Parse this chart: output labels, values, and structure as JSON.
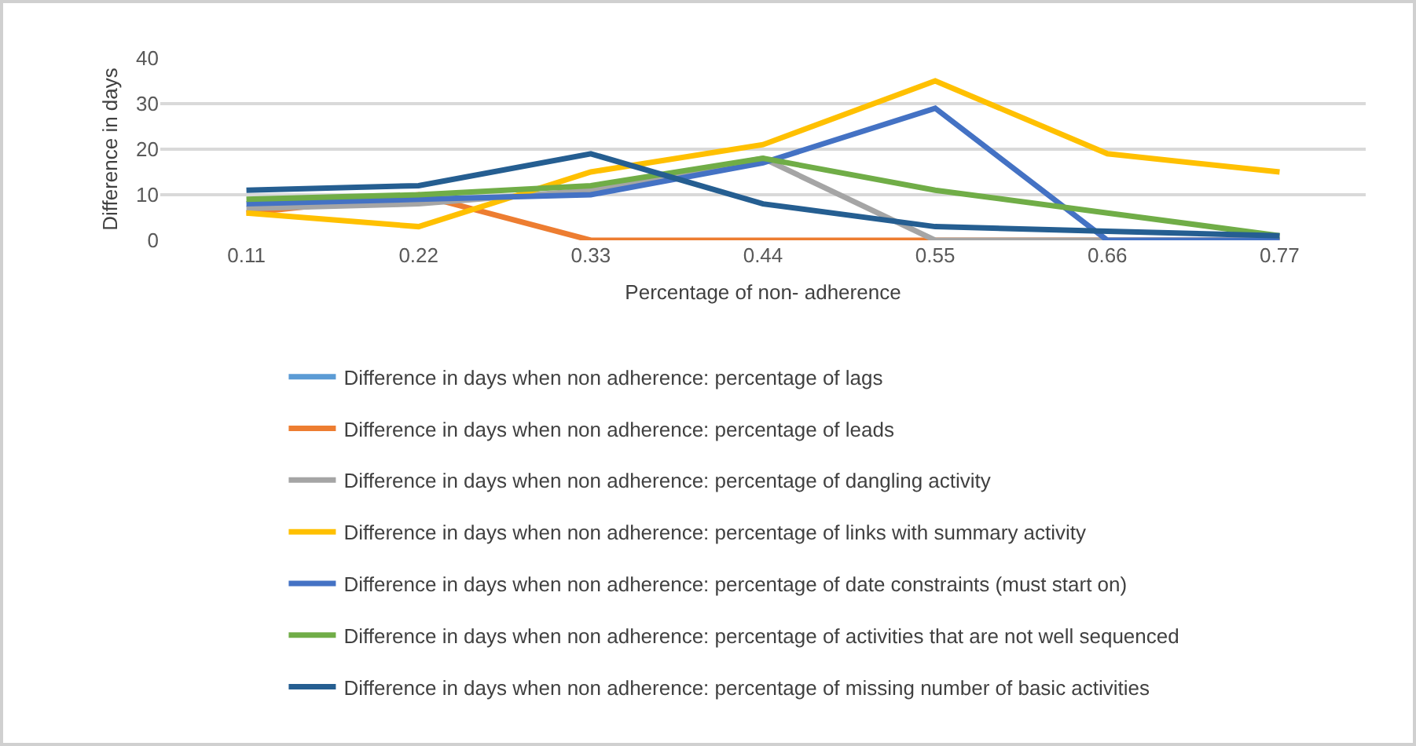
{
  "chart_data": {
    "type": "line",
    "xlabel": "Percentage of non- adherence",
    "ylabel": "Difference in days",
    "categories": [
      "0.11",
      "0.22",
      "0.33",
      "0.44",
      "0.55",
      "0.66",
      "0.77"
    ],
    "series": [
      {
        "name": "Difference in days when non adherence: percentage of lags",
        "color": "#5b9bd5",
        "values": [
          null,
          null,
          null,
          null,
          null,
          null,
          null
        ]
      },
      {
        "name": "Difference in days when non adherence: percentage of leads",
        "color": "#ed7d31",
        "values": [
          6,
          10,
          0,
          0,
          0,
          0,
          0
        ]
      },
      {
        "name": "Difference in days when non adherence: percentage of dangling activity",
        "color": "#a5a5a5",
        "values": [
          7,
          8,
          11,
          18,
          0,
          0,
          0
        ]
      },
      {
        "name": "Difference in days when non adherence: percentage of links with summary activity",
        "color": "#ffc000",
        "values": [
          6,
          3,
          15,
          21,
          35,
          19,
          15
        ]
      },
      {
        "name": "Difference in days when non adherence: percentage of date constraints (must start on)",
        "color": "#4472c4",
        "values": [
          8,
          9,
          10,
          17,
          29,
          0,
          0
        ]
      },
      {
        "name": "Difference in days when non adherence: percentage of activities that are not well sequenced",
        "color": "#70ad47",
        "values": [
          9,
          10,
          12,
          18,
          11,
          6,
          1
        ]
      },
      {
        "name": "Difference in days when non adherence: percentage of missing number of basic activities",
        "color": "#255e91",
        "values": [
          11,
          12,
          19,
          8,
          3,
          2,
          1
        ]
      }
    ],
    "ylim": [
      0,
      40
    ],
    "yticks": [
      0,
      10,
      20,
      30,
      40
    ],
    "grid": "y",
    "legend": "bottom",
    "marker": "none",
    "line_style": "solid"
  }
}
